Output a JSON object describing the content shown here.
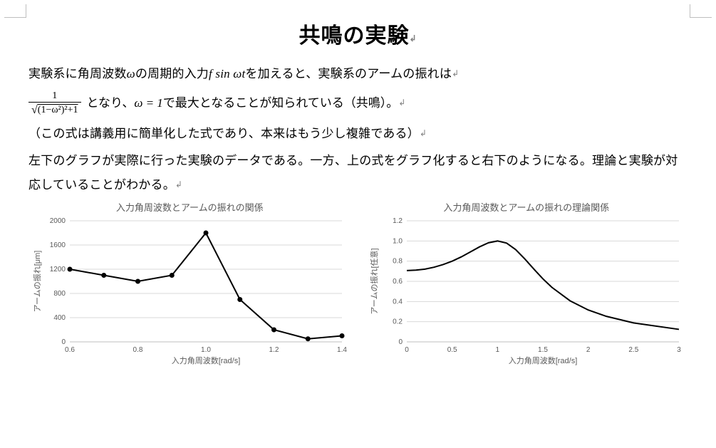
{
  "title": "共鳴の実験",
  "para1_a": "実験系に角周波数",
  "para1_b": "の周期的入力",
  "para1_c": "を加えると、実験系のアームの振れは",
  "omega": "ω",
  "f_sin": "f sin ωt",
  "formula_num": "1",
  "formula_den_expr": "(1−ω²)²+1",
  "formula_tail_a": " となり、",
  "formula_eq": "ω = 1",
  "formula_tail_b": "で最大となることが知られている（共鳴）。",
  "para2": "（この式は講義用に簡単化した式であり、本来はもう少し複雑である）",
  "para3": "左下のグラフが実際に行った実験のデータである。一方、上の式をグラフ化すると右下のようになる。理論と実験が対応していることがわかる。",
  "pmark": "↲",
  "chart_left": {
    "type": "line",
    "title": "入力角周波数とアームの振れの関係",
    "xlabel": "入力角周波数[rad/s]",
    "ylabel": "アームの振れ[μm]",
    "x": [
      0.6,
      0.7,
      0.8,
      0.9,
      1.0,
      1.1,
      1.2,
      1.3,
      1.4
    ],
    "y": [
      1200,
      1100,
      1000,
      1100,
      1800,
      700,
      200,
      50,
      100
    ],
    "xlim": [
      0.6,
      1.4
    ],
    "ylim": [
      0,
      2000
    ],
    "xticks": [
      0.6,
      0.8,
      1.0,
      1.2,
      1.4
    ],
    "yticks": [
      0,
      400,
      800,
      1200,
      1600,
      2000
    ],
    "marker": "circle",
    "marker_size": 3.5,
    "line_width": 2,
    "line_color": "#000000",
    "grid_color": "#d9d9d9",
    "border_color": "#bfbfbf",
    "background_color": "#ffffff",
    "title_fontsize": 13,
    "label_fontsize": 11,
    "tick_fontsize": 10
  },
  "chart_right": {
    "type": "line",
    "title": "入力角周波数とアームの振れの理論関係",
    "xlabel": "入力角周波数[rad/s]",
    "ylabel": "アームの振れ[任意]",
    "x": [
      0,
      0.1,
      0.2,
      0.3,
      0.4,
      0.5,
      0.6,
      0.7,
      0.8,
      0.9,
      1.0,
      1.1,
      1.2,
      1.3,
      1.4,
      1.5,
      1.6,
      1.8,
      2.0,
      2.2,
      2.5,
      3.0
    ],
    "y": [
      0.707,
      0.711,
      0.721,
      0.74,
      0.766,
      0.8,
      0.842,
      0.891,
      0.941,
      0.982,
      1.0,
      0.979,
      0.915,
      0.823,
      0.722,
      0.625,
      0.54,
      0.407,
      0.316,
      0.253,
      0.188,
      0.124
    ],
    "xlim": [
      0,
      3
    ],
    "ylim": [
      0,
      1.2
    ],
    "xticks": [
      0,
      0.5,
      1.0,
      1.5,
      2.0,
      2.5,
      3.0
    ],
    "yticks": [
      0,
      0.2,
      0.4,
      0.6,
      0.8,
      1.0,
      1.2
    ],
    "line_width": 2,
    "line_color": "#000000",
    "grid_color": "#d9d9d9",
    "border_color": "#bfbfbf",
    "background_color": "#ffffff",
    "title_fontsize": 13,
    "label_fontsize": 11,
    "tick_fontsize": 10
  }
}
